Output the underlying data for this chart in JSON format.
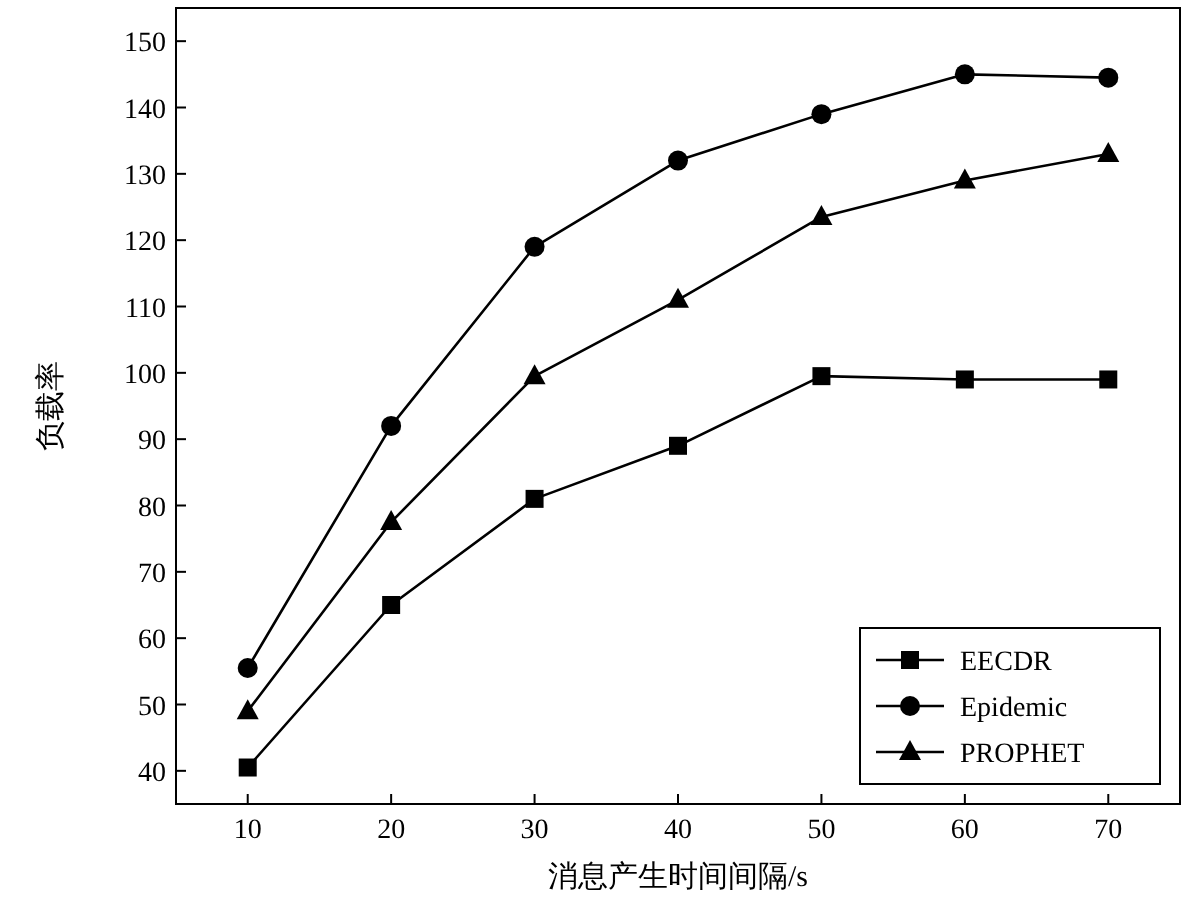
{
  "chart_data": {
    "type": "line",
    "xlabel": "消息产生时间间隔/s",
    "ylabel": "负载率",
    "x": [
      10,
      20,
      30,
      40,
      50,
      60,
      70
    ],
    "series": [
      {
        "name": "EECDR",
        "color": "#000000",
        "marker": "square",
        "values": [
          40.5,
          65,
          81,
          89,
          99.5,
          99,
          99
        ]
      },
      {
        "name": "Epidemic",
        "color": "#000000",
        "marker": "circle",
        "values": [
          55.5,
          92,
          119,
          132,
          139,
          145,
          144.5
        ]
      },
      {
        "name": "PROPHET",
        "color": "#000000",
        "marker": "triangle",
        "values": [
          49,
          77.5,
          99.5,
          111,
          123.5,
          129,
          133
        ]
      }
    ],
    "xlim": [
      5,
      75
    ],
    "xticks": [
      10,
      20,
      30,
      40,
      50,
      60,
      70
    ],
    "ylim": [
      35,
      155
    ],
    "yticks": [
      40,
      50,
      60,
      70,
      80,
      90,
      100,
      110,
      120,
      130,
      140,
      150
    ],
    "grid": false,
    "legend": "bottom right",
    "line_style": "solid"
  }
}
